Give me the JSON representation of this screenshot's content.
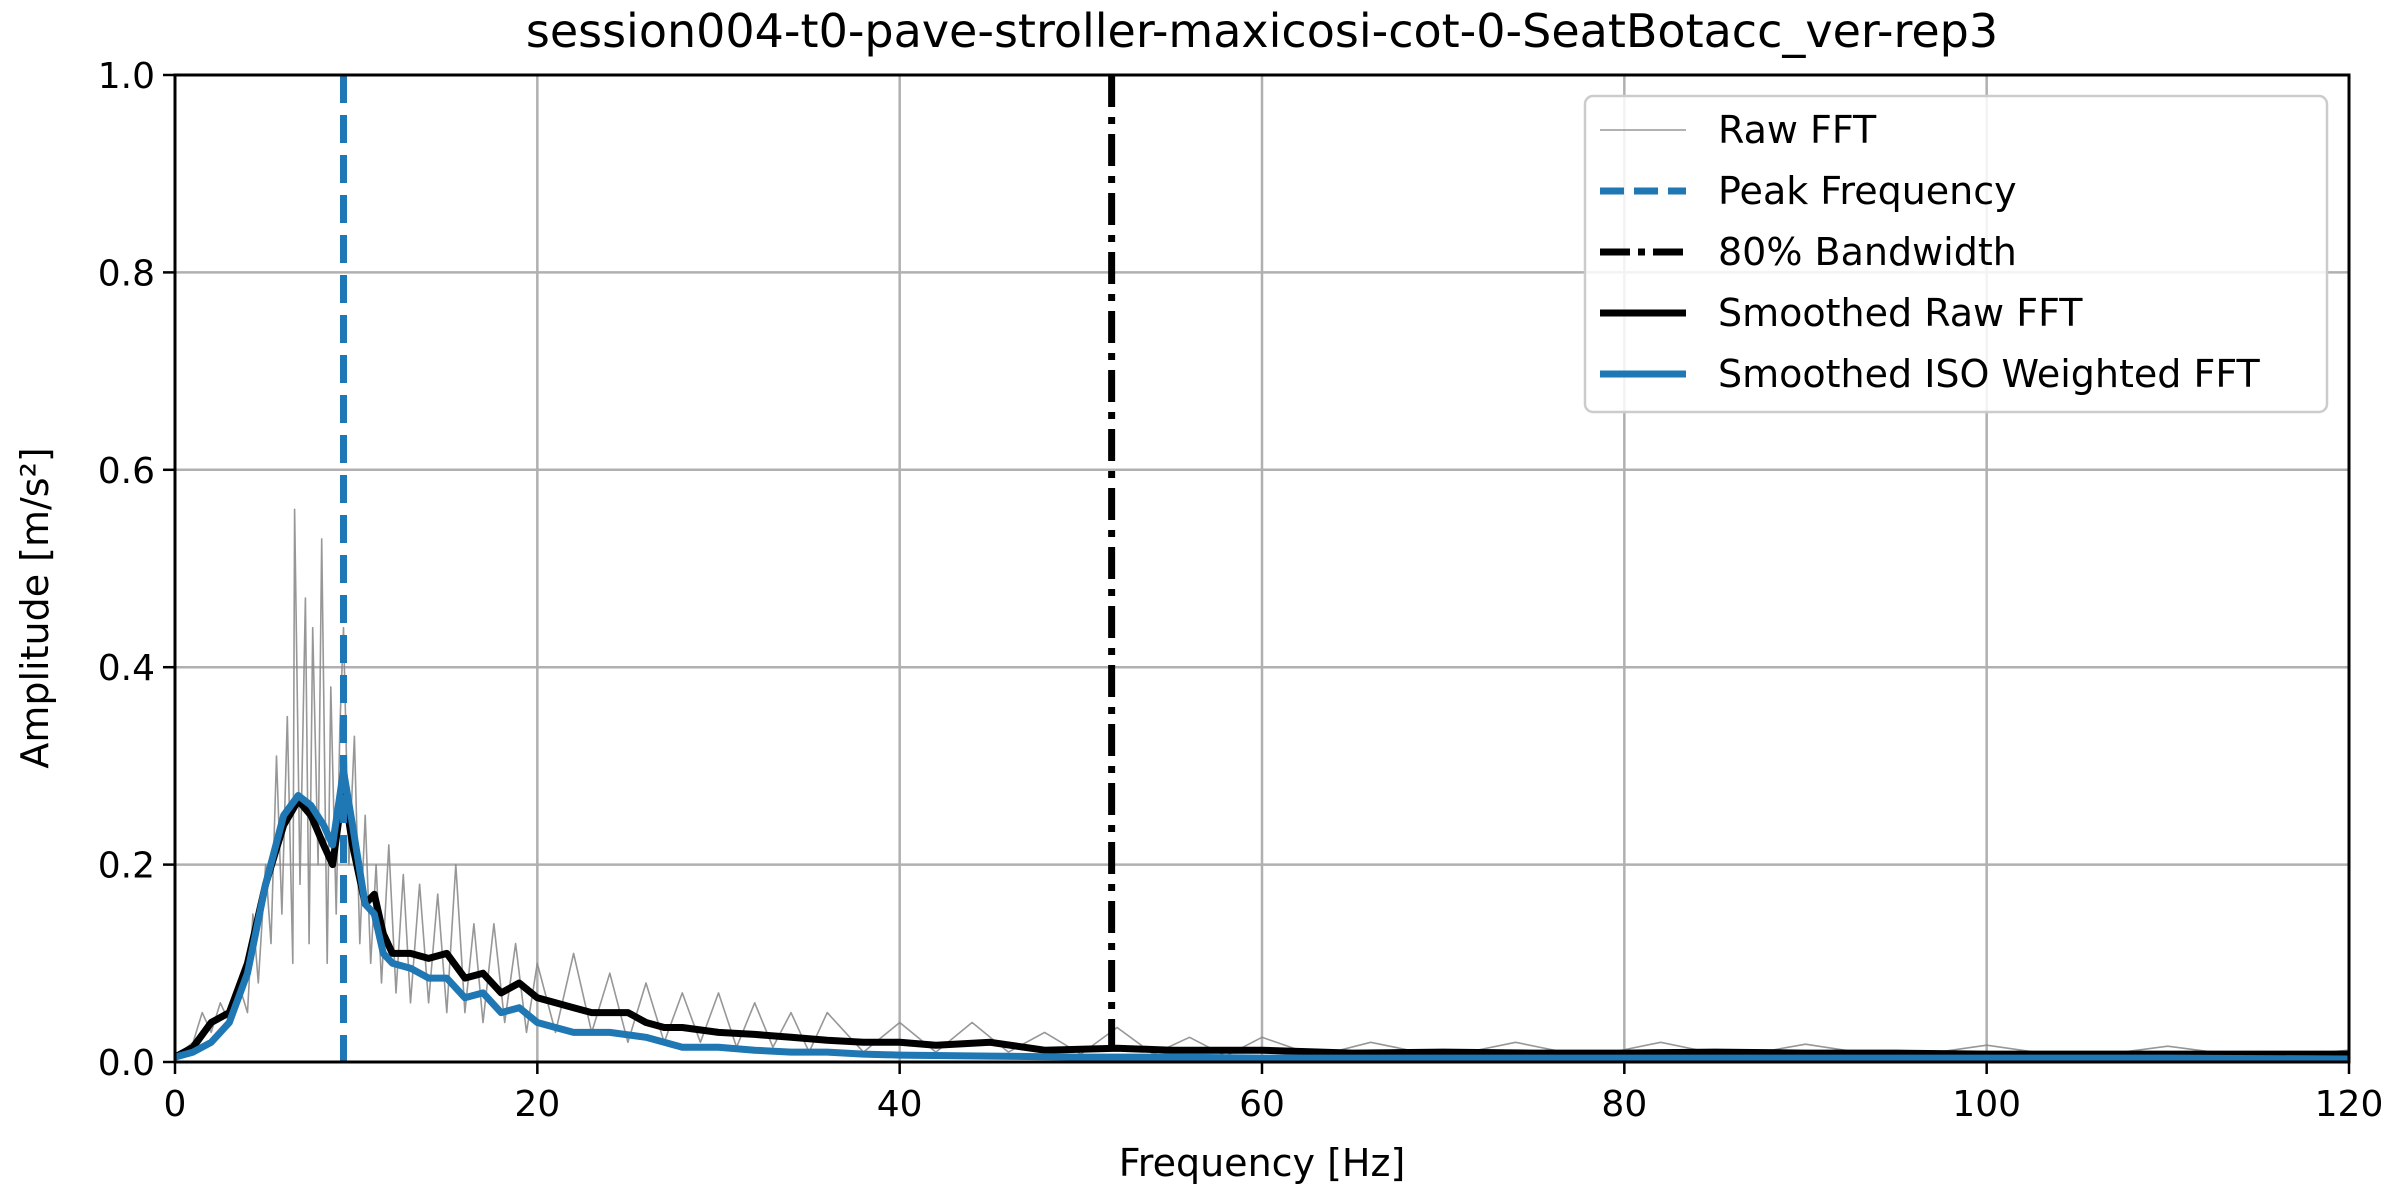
{
  "chart_data": {
    "type": "line",
    "title": "session004-t0-pave-stroller-maxicosi-cot-0-SeatBotacc_ver-rep3",
    "xlabel": "Frequency [Hz]",
    "ylabel": "Amplitude [m/s²]",
    "xlim": [
      0,
      120
    ],
    "ylim": [
      0,
      1.0
    ],
    "x_ticks": [
      0,
      20,
      40,
      60,
      80,
      100,
      120
    ],
    "x_tick_labels": [
      "0",
      "20",
      "40",
      "60",
      "80",
      "100",
      "120"
    ],
    "y_ticks": [
      0.0,
      0.2,
      0.4,
      0.6,
      0.8,
      1.0
    ],
    "y_tick_labels": [
      "0.0",
      "0.2",
      "0.4",
      "0.6",
      "0.8",
      "1.0"
    ],
    "grid": true,
    "legend_position": "top-right",
    "peak_frequency": 9.3,
    "bandwidth_80": 51.7,
    "series": [
      {
        "name": "Raw FFT",
        "color": "#8c8c8c",
        "style": "thin",
        "points": [
          [
            0,
            0.005
          ],
          [
            1,
            0.02
          ],
          [
            1.5,
            0.05
          ],
          [
            2,
            0.03
          ],
          [
            2.5,
            0.06
          ],
          [
            3,
            0.04
          ],
          [
            3.5,
            0.08
          ],
          [
            4,
            0.05
          ],
          [
            4.3,
            0.15
          ],
          [
            4.6,
            0.08
          ],
          [
            5,
            0.2
          ],
          [
            5.3,
            0.12
          ],
          [
            5.6,
            0.31
          ],
          [
            5.9,
            0.15
          ],
          [
            6.2,
            0.35
          ],
          [
            6.5,
            0.1
          ],
          [
            6.6,
            0.56
          ],
          [
            6.9,
            0.18
          ],
          [
            7.2,
            0.47
          ],
          [
            7.4,
            0.12
          ],
          [
            7.6,
            0.44
          ],
          [
            7.9,
            0.2
          ],
          [
            8.1,
            0.53
          ],
          [
            8.4,
            0.1
          ],
          [
            8.6,
            0.38
          ],
          [
            8.9,
            0.15
          ],
          [
            9.1,
            0.34
          ],
          [
            9.3,
            0.44
          ],
          [
            9.6,
            0.2
          ],
          [
            9.9,
            0.33
          ],
          [
            10.2,
            0.12
          ],
          [
            10.5,
            0.25
          ],
          [
            10.8,
            0.1
          ],
          [
            11.1,
            0.2
          ],
          [
            11.4,
            0.08
          ],
          [
            11.8,
            0.22
          ],
          [
            12.2,
            0.07
          ],
          [
            12.6,
            0.19
          ],
          [
            13,
            0.06
          ],
          [
            13.5,
            0.18
          ],
          [
            14,
            0.06
          ],
          [
            14.5,
            0.17
          ],
          [
            15,
            0.05
          ],
          [
            15.5,
            0.2
          ],
          [
            16,
            0.05
          ],
          [
            16.5,
            0.14
          ],
          [
            17,
            0.04
          ],
          [
            17.6,
            0.14
          ],
          [
            18.2,
            0.04
          ],
          [
            18.8,
            0.12
          ],
          [
            19.4,
            0.03
          ],
          [
            20,
            0.1
          ],
          [
            21,
            0.03
          ],
          [
            22,
            0.11
          ],
          [
            23,
            0.03
          ],
          [
            24,
            0.09
          ],
          [
            25,
            0.02
          ],
          [
            26,
            0.08
          ],
          [
            27,
            0.02
          ],
          [
            28,
            0.07
          ],
          [
            29,
            0.02
          ],
          [
            30,
            0.07
          ],
          [
            31,
            0.015
          ],
          [
            32,
            0.06
          ],
          [
            33,
            0.015
          ],
          [
            34,
            0.05
          ],
          [
            35,
            0.01
          ],
          [
            36,
            0.05
          ],
          [
            38,
            0.01
          ],
          [
            40,
            0.04
          ],
          [
            42,
            0.01
          ],
          [
            44,
            0.04
          ],
          [
            46,
            0.01
          ],
          [
            48,
            0.03
          ],
          [
            50,
            0.008
          ],
          [
            52,
            0.035
          ],
          [
            54,
            0.008
          ],
          [
            56,
            0.025
          ],
          [
            58,
            0.006
          ],
          [
            60,
            0.025
          ],
          [
            63,
            0.006
          ],
          [
            66,
            0.02
          ],
          [
            70,
            0.005
          ],
          [
            74,
            0.02
          ],
          [
            78,
            0.005
          ],
          [
            82,
            0.02
          ],
          [
            86,
            0.005
          ],
          [
            90,
            0.018
          ],
          [
            95,
            0.004
          ],
          [
            100,
            0.017
          ],
          [
            105,
            0.004
          ],
          [
            110,
            0.016
          ],
          [
            115,
            0.004
          ],
          [
            120,
            0.012
          ]
        ]
      },
      {
        "name": "Smoothed Raw FFT",
        "color": "#000000",
        "style": "thick",
        "points": [
          [
            0,
            0.005
          ],
          [
            1,
            0.015
          ],
          [
            2,
            0.04
          ],
          [
            3,
            0.05
          ],
          [
            4,
            0.1
          ],
          [
            5,
            0.18
          ],
          [
            6,
            0.24
          ],
          [
            6.8,
            0.265
          ],
          [
            7.5,
            0.25
          ],
          [
            8.2,
            0.22
          ],
          [
            8.7,
            0.2
          ],
          [
            9.3,
            0.28
          ],
          [
            9.8,
            0.22
          ],
          [
            10.5,
            0.16
          ],
          [
            11,
            0.17
          ],
          [
            11.5,
            0.13
          ],
          [
            12,
            0.11
          ],
          [
            13,
            0.11
          ],
          [
            14,
            0.105
          ],
          [
            15,
            0.11
          ],
          [
            16,
            0.085
          ],
          [
            17,
            0.09
          ],
          [
            18,
            0.07
          ],
          [
            19,
            0.08
          ],
          [
            20,
            0.065
          ],
          [
            21,
            0.06
          ],
          [
            22,
            0.055
          ],
          [
            23,
            0.05
          ],
          [
            24,
            0.05
          ],
          [
            25,
            0.05
          ],
          [
            26,
            0.04
          ],
          [
            27,
            0.035
          ],
          [
            28,
            0.035
          ],
          [
            30,
            0.03
          ],
          [
            32,
            0.028
          ],
          [
            34,
            0.025
          ],
          [
            36,
            0.022
          ],
          [
            38,
            0.02
          ],
          [
            40,
            0.02
          ],
          [
            42,
            0.017
          ],
          [
            45,
            0.02
          ],
          [
            48,
            0.012
          ],
          [
            52,
            0.014
          ],
          [
            55,
            0.012
          ],
          [
            60,
            0.012
          ],
          [
            65,
            0.009
          ],
          [
            70,
            0.01
          ],
          [
            75,
            0.009
          ],
          [
            80,
            0.009
          ],
          [
            85,
            0.01
          ],
          [
            90,
            0.009
          ],
          [
            95,
            0.009
          ],
          [
            100,
            0.008
          ],
          [
            105,
            0.008
          ],
          [
            110,
            0.008
          ],
          [
            115,
            0.008
          ],
          [
            120,
            0.008
          ]
        ]
      },
      {
        "name": "Smoothed ISO Weighted FFT",
        "color": "#1f77b4",
        "style": "thick",
        "points": [
          [
            0,
            0.005
          ],
          [
            1,
            0.01
          ],
          [
            2,
            0.02
          ],
          [
            3,
            0.04
          ],
          [
            4,
            0.09
          ],
          [
            5,
            0.18
          ],
          [
            6,
            0.25
          ],
          [
            6.8,
            0.27
          ],
          [
            7.5,
            0.26
          ],
          [
            8.2,
            0.24
          ],
          [
            8.7,
            0.22
          ],
          [
            9.3,
            0.295
          ],
          [
            9.8,
            0.24
          ],
          [
            10.5,
            0.16
          ],
          [
            11,
            0.15
          ],
          [
            11.5,
            0.11
          ],
          [
            12,
            0.1
          ],
          [
            13,
            0.095
          ],
          [
            14,
            0.085
          ],
          [
            15,
            0.085
          ],
          [
            16,
            0.065
          ],
          [
            17,
            0.07
          ],
          [
            18,
            0.05
          ],
          [
            19,
            0.055
          ],
          [
            20,
            0.04
          ],
          [
            21,
            0.035
          ],
          [
            22,
            0.03
          ],
          [
            24,
            0.03
          ],
          [
            26,
            0.025
          ],
          [
            28,
            0.015
          ],
          [
            30,
            0.015
          ],
          [
            32,
            0.012
          ],
          [
            34,
            0.01
          ],
          [
            36,
            0.01
          ],
          [
            38,
            0.008
          ],
          [
            40,
            0.007
          ],
          [
            45,
            0.006
          ],
          [
            50,
            0.005
          ],
          [
            55,
            0.005
          ],
          [
            60,
            0.004
          ],
          [
            70,
            0.004
          ],
          [
            80,
            0.004
          ],
          [
            90,
            0.004
          ],
          [
            100,
            0.004
          ],
          [
            110,
            0.004
          ],
          [
            120,
            0.003
          ]
        ]
      }
    ],
    "vertical_lines": [
      {
        "name": "Peak Frequency",
        "x": 9.3,
        "color": "#1f77b4",
        "style": "dashed"
      },
      {
        "name": "80% Bandwidth",
        "x": 51.7,
        "color": "#000000",
        "style": "dashdot"
      }
    ],
    "legend": [
      {
        "label": "Raw FFT",
        "color": "#8c8c8c",
        "style": "thin"
      },
      {
        "label": "Peak Frequency",
        "color": "#1f77b4",
        "style": "dashed"
      },
      {
        "label": "80% Bandwidth",
        "color": "#000000",
        "style": "dashdot"
      },
      {
        "label": "Smoothed Raw FFT",
        "color": "#000000",
        "style": "thick"
      },
      {
        "label": "Smoothed ISO Weighted FFT",
        "color": "#1f77b4",
        "style": "thick"
      }
    ]
  }
}
